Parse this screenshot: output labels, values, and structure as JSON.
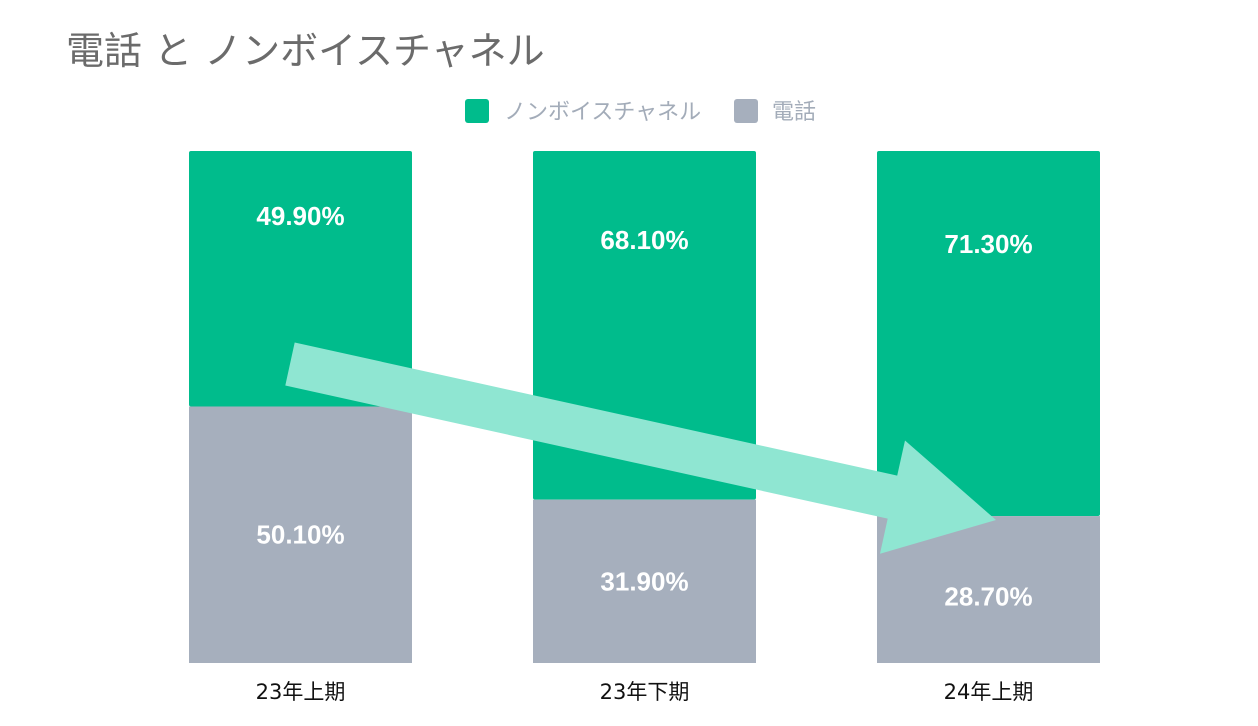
{
  "title": "電話 と ノンボイスチャネル",
  "colors": {
    "nonvoice": "#00bc8c",
    "phone": "#a6afbd",
    "highlight": "#ff0000",
    "arrow": "#8fe6d2",
    "label": "#ffffff"
  },
  "chart_data": {
    "type": "bar",
    "stacked": true,
    "title": "電話 と ノンボイスチャネル",
    "categories": [
      "23年上期",
      "23年下期",
      "24年上期"
    ],
    "series": [
      {
        "name": "電話",
        "values": [
          50.1,
          31.9,
          28.7
        ],
        "labels": [
          "50.10%",
          "31.90%",
          "28.70%"
        ]
      },
      {
        "name": "ノンボイスチャネル",
        "values": [
          49.9,
          68.1,
          71.3
        ],
        "labels": [
          "49.90%",
          "68.10%",
          "71.30%"
        ]
      }
    ],
    "legend": [
      "ノンボイスチャネル",
      "電話"
    ],
    "legend_position": "top",
    "ylim": [
      0,
      100
    ],
    "unit": "%",
    "grid": false,
    "highlight": "24年上期 電話 28.70%",
    "annotation": "arrow pointing down to 24年上期 電話"
  }
}
